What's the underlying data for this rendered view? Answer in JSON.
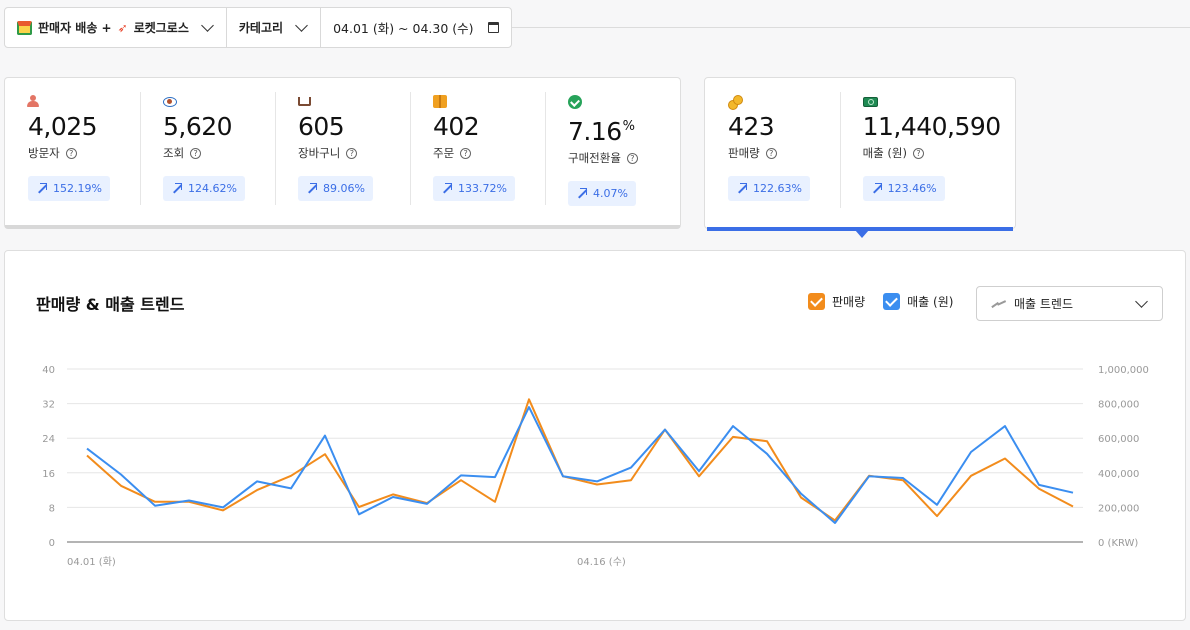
{
  "filters": {
    "channel": "판매자 배송 +",
    "channel_rocket": "로켓그로스",
    "category": "카테고리",
    "date_range": "04.01 (화) ~ 04.30 (수)"
  },
  "metrics_left": [
    {
      "icon": "person-icon",
      "value": "4,025",
      "label": "방문자",
      "change": "152.19%"
    },
    {
      "icon": "eye-icon",
      "value": "5,620",
      "label": "조회",
      "change": "124.62%"
    },
    {
      "icon": "cart-icon",
      "value": "605",
      "label": "장바구니",
      "change": "89.06%"
    },
    {
      "icon": "package-icon",
      "value": "402",
      "label": "주문",
      "change": "133.72%"
    },
    {
      "icon": "check-circle-icon",
      "value": "7.16",
      "unit": "%",
      "label": "구매전환율",
      "change": "4.07%"
    }
  ],
  "metrics_right": [
    {
      "icon": "coins-icon",
      "value": "423",
      "label": "판매량",
      "change": "122.63%"
    },
    {
      "icon": "money-icon",
      "value": "11,440,590",
      "label": "매출 (원)",
      "change": "123.46%"
    }
  ],
  "colors": {
    "sales_qty": "#f28c1c",
    "revenue": "#3b8ef0",
    "accent": "#3b6ee6"
  },
  "chart_panel": {
    "title": "판매량 & 매출 트렌드",
    "legend_qty": "판매량",
    "legend_revenue": "매출 (원)",
    "select_value": "매출 트렌드"
  },
  "chart_data": {
    "type": "line",
    "x": [
      "04.01 (화)",
      "04.02",
      "04.03",
      "04.04",
      "04.05",
      "04.06",
      "04.07",
      "04.08",
      "04.09",
      "04.10",
      "04.11",
      "04.12",
      "04.13",
      "04.14",
      "04.15",
      "04.16 (수)",
      "04.17",
      "04.18",
      "04.19",
      "04.20",
      "04.21",
      "04.22",
      "04.23",
      "04.24",
      "04.25",
      "04.26",
      "04.27",
      "04.28",
      "04.29",
      "04.30"
    ],
    "x_tick_labels": [
      "04.01 (화)",
      "04.16 (수)"
    ],
    "x_tick_indices": [
      0,
      15
    ],
    "y_left": {
      "ticks": [
        "0",
        "8",
        "16",
        "24",
        "32",
        "40"
      ],
      "lim": [
        0,
        40
      ]
    },
    "y_right": {
      "ticks": [
        "0 (KRW)",
        "200,000",
        "400,000",
        "600,000",
        "800,000",
        "1,000,000"
      ],
      "lim": [
        0,
        1000000
      ]
    },
    "grid": true,
    "series": [
      {
        "name": "판매량",
        "axis": "left",
        "values": [
          20,
          13,
          9.3,
          9.3,
          7.3,
          12,
          15.3,
          20.3,
          8.1,
          11,
          9,
          14.3,
          9.3,
          33,
          15.2,
          13.3,
          14.3,
          26,
          15.2,
          24.3,
          23.3,
          10.3,
          5,
          15.3,
          14.3,
          6,
          15.3,
          19.3,
          12.3,
          8.2
        ]
      },
      {
        "name": "매출 (원)",
        "axis": "right",
        "values": [
          540000,
          390000,
          210000,
          240000,
          200000,
          350000,
          310000,
          615000,
          160000,
          260000,
          220000,
          385000,
          375000,
          780000,
          380000,
          350000,
          430000,
          650000,
          410000,
          670000,
          510000,
          280000,
          110000,
          380000,
          370000,
          215000,
          520000,
          670000,
          330000,
          285000
        ]
      }
    ]
  }
}
